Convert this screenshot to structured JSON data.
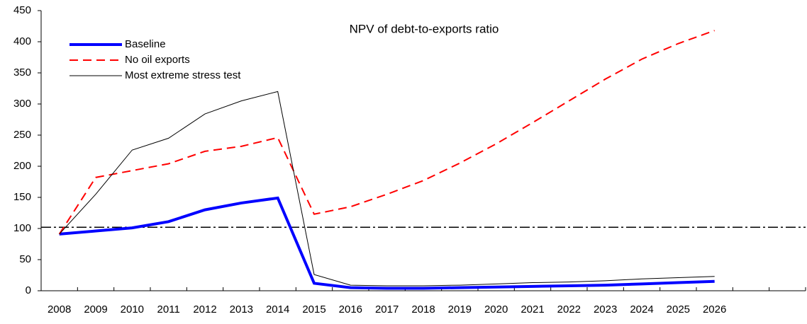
{
  "chart_data": {
    "type": "line",
    "title": "NPV of debt-to-exports ratio",
    "categories": [
      "2008",
      "2009",
      "2010",
      "2011",
      "2012",
      "2013",
      "2014",
      "2015",
      "2016",
      "2017",
      "2018",
      "2019",
      "2020",
      "2021",
      "2022",
      "2023",
      "2024",
      "2025",
      "2026",
      null,
      null
    ],
    "series": [
      {
        "name": "Baseline",
        "color": "#0000ff",
        "values": [
          91,
          96,
          101,
          111,
          130,
          141,
          149,
          12,
          5,
          4,
          4,
          5,
          6,
          7,
          8,
          9,
          11,
          13,
          15,
          null,
          null
        ]
      },
      {
        "name": "No oil exports",
        "color": "#ff0000",
        "values": [
          91,
          182,
          193,
          204,
          224,
          232,
          246,
          123,
          135,
          155,
          177,
          205,
          236,
          270,
          305,
          340,
          372,
          397,
          418,
          null,
          null
        ]
      },
      {
        "name": "Most extreme stress test",
        "color": "#000000",
        "values": [
          91,
          155,
          226,
          245,
          284,
          305,
          320,
          26,
          9,
          8,
          8,
          9,
          11,
          13,
          14,
          16,
          19,
          21,
          23,
          null,
          null
        ]
      }
    ],
    "reference_line": 102,
    "ylim": [
      0,
      450
    ],
    "yticks": [
      0,
      50,
      100,
      150,
      200,
      250,
      300,
      350,
      400,
      450
    ]
  }
}
